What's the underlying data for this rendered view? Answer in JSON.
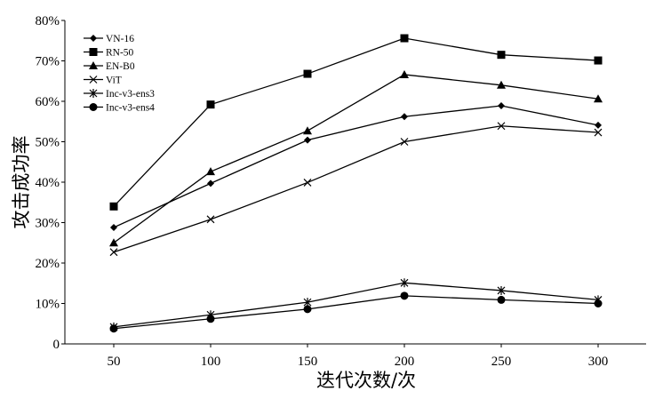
{
  "chart_data": {
    "type": "line",
    "title": "",
    "xlabel": "迭代次数/次",
    "ylabel": "攻击成功率",
    "x": [
      50,
      100,
      150,
      200,
      250,
      300
    ],
    "x_tick_labels": [
      "50",
      "100",
      "150",
      "200",
      "250",
      "300"
    ],
    "ylim": [
      0,
      80
    ],
    "y_ticks": [
      0,
      10,
      20,
      30,
      40,
      50,
      60,
      70,
      80
    ],
    "y_tick_labels": [
      "0",
      "10%",
      "20%",
      "30%",
      "40%",
      "50%",
      "60%",
      "70%",
      "80%"
    ],
    "grid": false,
    "legend_position": "top-left",
    "series": [
      {
        "name": "VN-16",
        "marker": "diamond",
        "values": [
          28.8,
          39.7,
          50.4,
          56.2,
          58.9,
          54.1
        ]
      },
      {
        "name": "RN-50",
        "marker": "square",
        "values": [
          34.0,
          59.2,
          66.8,
          75.6,
          71.5,
          70.1
        ]
      },
      {
        "name": "EN-B0",
        "marker": "triangle",
        "values": [
          25.0,
          42.6,
          52.7,
          66.6,
          64.0,
          60.6
        ]
      },
      {
        "name": "ViT",
        "marker": "x",
        "values": [
          22.7,
          30.8,
          39.9,
          50.0,
          53.9,
          52.3
        ]
      },
      {
        "name": "Inc-v3-ens3",
        "marker": "star",
        "values": [
          4.2,
          7.2,
          10.3,
          15.1,
          13.2,
          10.9
        ]
      },
      {
        "name": "Inc-v3-ens4",
        "marker": "circle",
        "values": [
          3.8,
          6.2,
          8.6,
          11.9,
          10.9,
          10.0
        ]
      }
    ]
  }
}
